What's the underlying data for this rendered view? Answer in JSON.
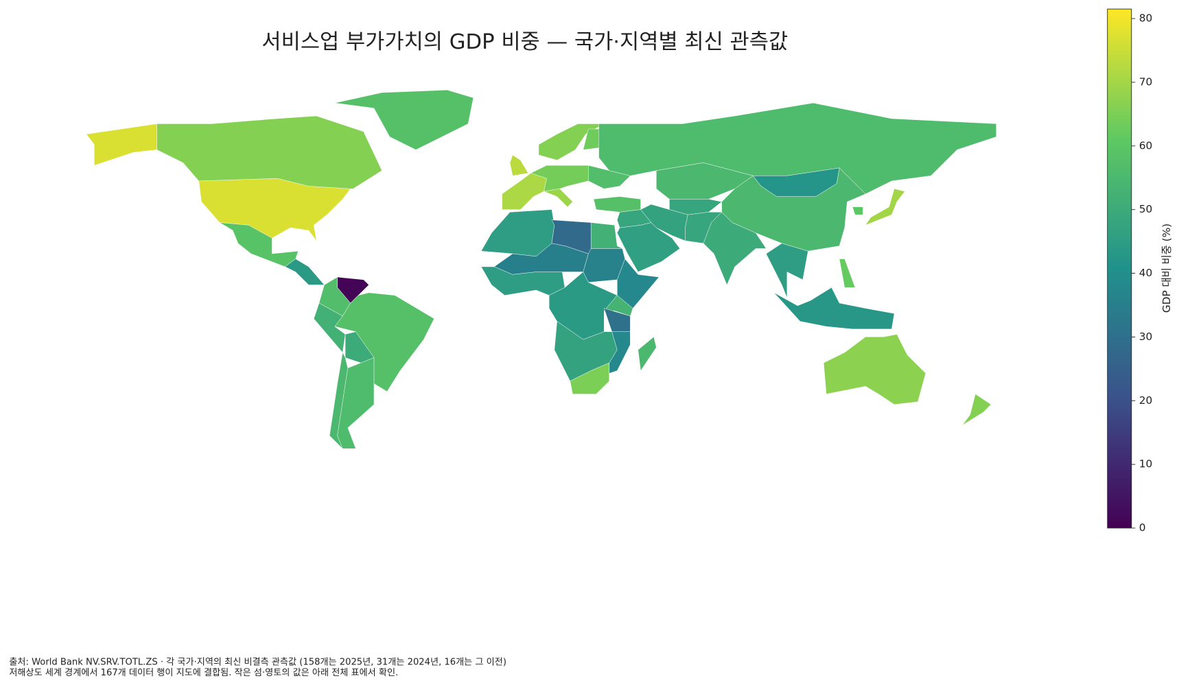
{
  "chart_data": {
    "type": "choropleth",
    "title": "서비스업 부가가치의 GDP 비중 — 국가·지역별 최신 관측값",
    "colormap": "viridis",
    "values": [
      77,
      77,
      66,
      58,
      59,
      44,
      1,
      57,
      58,
      52,
      50,
      55,
      56,
      71,
      73,
      64,
      69,
      66,
      63,
      57,
      58,
      56,
      55,
      48,
      42,
      55,
      50,
      48,
      47,
      46,
      48,
      45,
      70,
      60,
      43,
      62,
      67,
      66,
      45,
      28,
      52,
      35,
      36,
      45,
      38,
      44,
      53,
      30,
      47,
      38,
      65,
      55
    ],
    "colorbar": {
      "label": "GDP 대비 비중 (%)",
      "lim": [
        0,
        81.5
      ],
      "ticks": [
        0,
        10,
        20,
        30,
        40,
        50,
        60,
        70,
        80
      ]
    },
    "notes": [
      "출처: World Bank NV.SRV.TOTL.ZS · 각 국가·지역의 최신 비결측 관측값 (158개는 2025년, 31개는 2024년, 16개는 그 이전)",
      "저해상도 세계 경계에서 167개 데이터 행이 지도에 결합됨. 작은 섬·영토의 값은 아래 전체 표에서 확인."
    ]
  }
}
